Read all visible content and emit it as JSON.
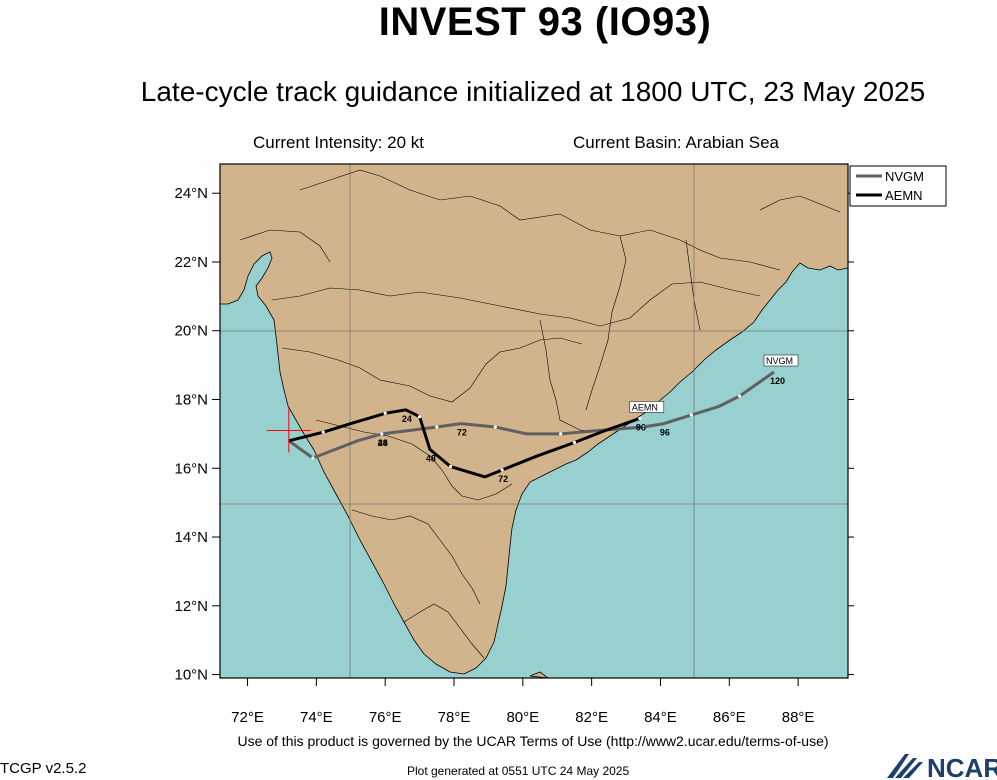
{
  "title": "INVEST 93 (IO93)",
  "subtitle": "Late-cycle track guidance initialized at 1800 UTC, 23 May 2025",
  "info": {
    "intensity": "Current Intensity: 20 kt",
    "basin": "Current Basin: Arabian Sea"
  },
  "footer": {
    "terms": "Use of this product is governed by the UCAR Terms of Use (http://www2.ucar.edu/terms-of-use)",
    "version": "TCGP v2.5.2",
    "generated": "Plot generated at 0551 UTC   24 May 2025",
    "logo_text": "NCAR"
  },
  "colors": {
    "land": "#d2b48c",
    "ocean": "#98cfcf",
    "NVGM": "#606060",
    "AEMN": "#000000",
    "storm_marker": "#ff0000"
  },
  "map": {
    "lat_ticks": [
      "10°N",
      "12°N",
      "14°N",
      "16°N",
      "18°N",
      "20°N",
      "22°N",
      "24°N"
    ],
    "lon_ticks": [
      "72°E",
      "74°E",
      "76°E",
      "78°E",
      "80°E",
      "82°E",
      "84°E",
      "86°E",
      "88°E"
    ],
    "current_position": {
      "lon": 73.2,
      "lat": 17.1
    }
  },
  "legend": [
    {
      "name": "NVGM"
    },
    {
      "name": "AEMN"
    }
  ],
  "tracks": [
    {
      "name": "NVGM",
      "points": [
        [
          73.2,
          16.8
        ],
        [
          73.9,
          16.3
        ],
        [
          75.2,
          16.8
        ],
        [
          75.9,
          17.0
        ],
        [
          76.7,
          17.1
        ],
        [
          77.5,
          17.2
        ],
        [
          78.2,
          17.3
        ],
        [
          79.2,
          17.2
        ],
        [
          80.1,
          17.0
        ],
        [
          81.1,
          17.0
        ],
        [
          82.2,
          17.1
        ],
        [
          83.5,
          17.2
        ],
        [
          84.1,
          17.3
        ],
        [
          84.9,
          17.55
        ],
        [
          85.7,
          17.8
        ],
        [
          86.3,
          18.1
        ],
        [
          87.3,
          18.8
        ]
      ],
      "end_label": "NVGM",
      "end_hour": "120",
      "hour_labels": [
        {
          "text": "24",
          "at": 3
        },
        {
          "text": "48",
          "at": 3
        },
        {
          "text": "72",
          "at": 6
        },
        {
          "text": "96",
          "at": 12
        },
        {
          "text": "120",
          "at": 16
        }
      ]
    },
    {
      "name": "AEMN",
      "points": [
        [
          73.2,
          16.8
        ],
        [
          74.2,
          17.05
        ],
        [
          75.0,
          17.3
        ],
        [
          76.0,
          17.6
        ],
        [
          76.6,
          17.7
        ],
        [
          77.0,
          17.5
        ],
        [
          77.3,
          16.55
        ],
        [
          77.9,
          16.05
        ],
        [
          78.9,
          15.75
        ],
        [
          79.4,
          15.95
        ],
        [
          80.4,
          16.35
        ],
        [
          81.5,
          16.75
        ],
        [
          82.4,
          17.1
        ],
        [
          83.4,
          17.45
        ]
      ],
      "end_label": "AEMN",
      "end_hour": "96",
      "hour_labels": [
        {
          "text": "24",
          "at": 4
        },
        {
          "text": "48",
          "at": 6
        },
        {
          "text": "72",
          "at": 9
        },
        {
          "text": "96",
          "at": 13
        }
      ]
    }
  ]
}
